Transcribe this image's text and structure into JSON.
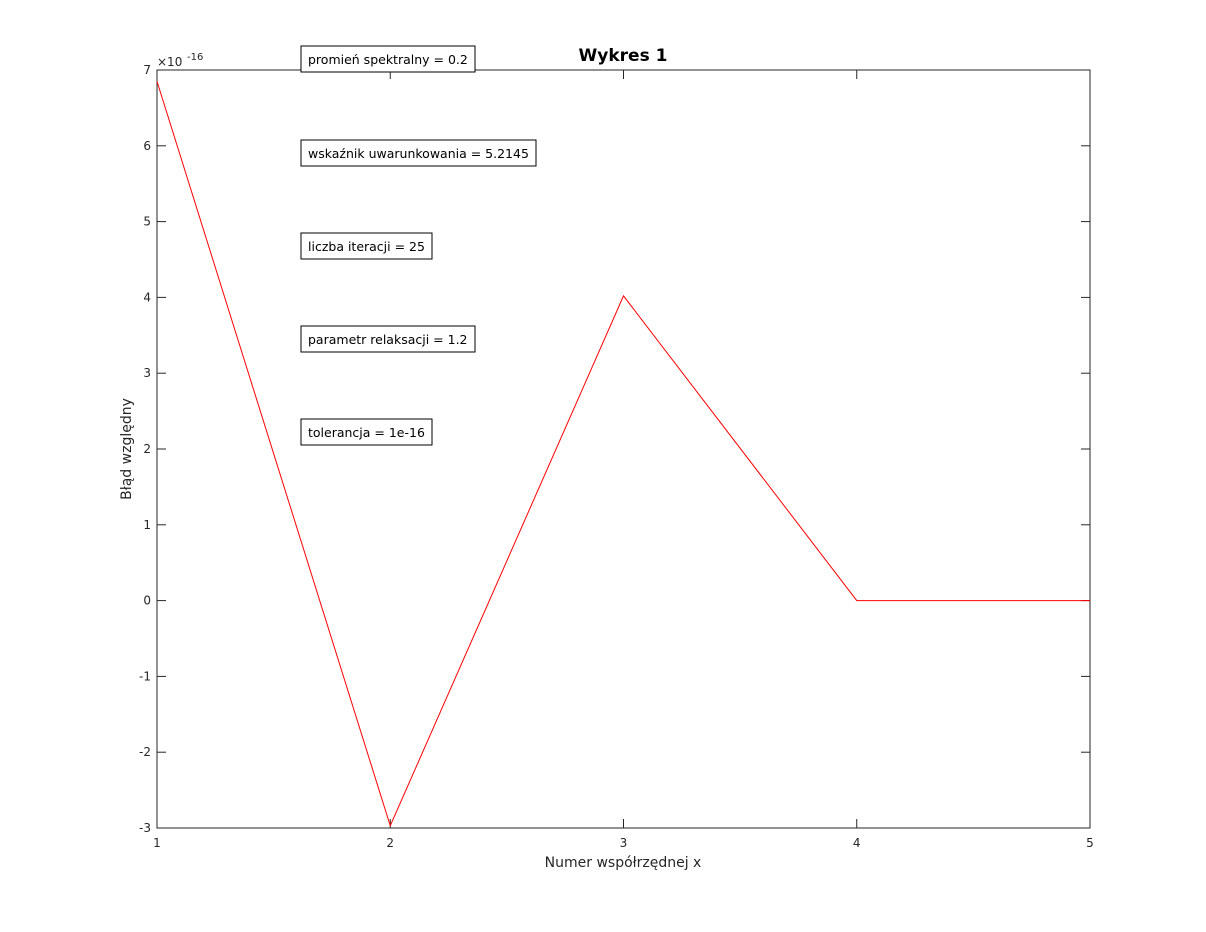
{
  "chart_data": {
    "type": "line",
    "title": "Wykres 1",
    "xlabel": "Numer współrzędnej x",
    "ylabel": "Błąd względny",
    "y_exponent_label": {
      "base": "×10",
      "exponent": "-16"
    },
    "x": [
      1,
      2,
      3,
      4,
      5
    ],
    "series": [
      {
        "color": "#ff0000",
        "values": [
          6.85,
          -2.97,
          4.02,
          0,
          0
        ]
      }
    ],
    "xlim": [
      1,
      5
    ],
    "ylim": [
      -3,
      7
    ],
    "xticks": [
      1,
      2,
      3,
      4,
      5
    ],
    "yticks": [
      -3,
      -2,
      -1,
      0,
      1,
      2,
      3,
      4,
      5,
      6,
      7
    ],
    "grid": false,
    "annotations": [
      "promień spektralny = 0.2",
      "wskaźnik uwarunkowania = 5.2145",
      "liczba iteracji = 25",
      "parametr relaksacji = 1.2",
      "tolerancja = 1e-16"
    ]
  }
}
